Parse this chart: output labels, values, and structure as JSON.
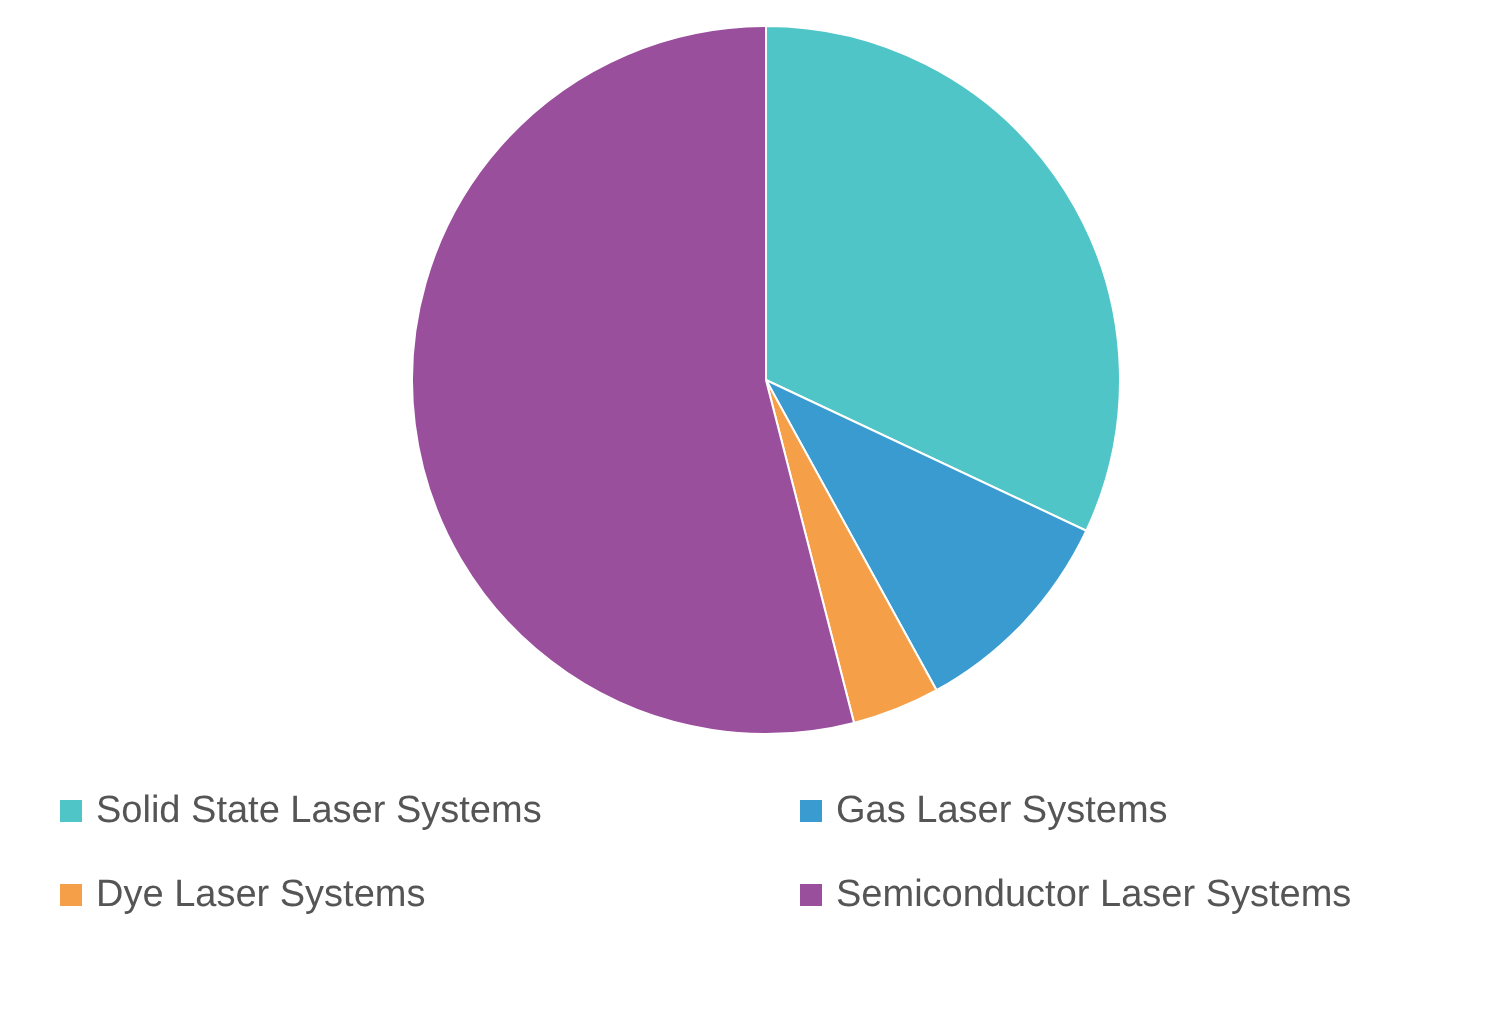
{
  "chart_data": {
    "type": "pie",
    "categories": [
      "Solid State Laser Systems",
      "Gas Laser Systems",
      "Dye Laser Systems",
      "Semiconductor Laser Systems"
    ],
    "values": [
      32,
      10,
      4,
      54
    ],
    "colors": [
      "#4fc5c8",
      "#3a9bd0",
      "#f5a048",
      "#9a4f9d"
    ],
    "legend": "bottom"
  }
}
